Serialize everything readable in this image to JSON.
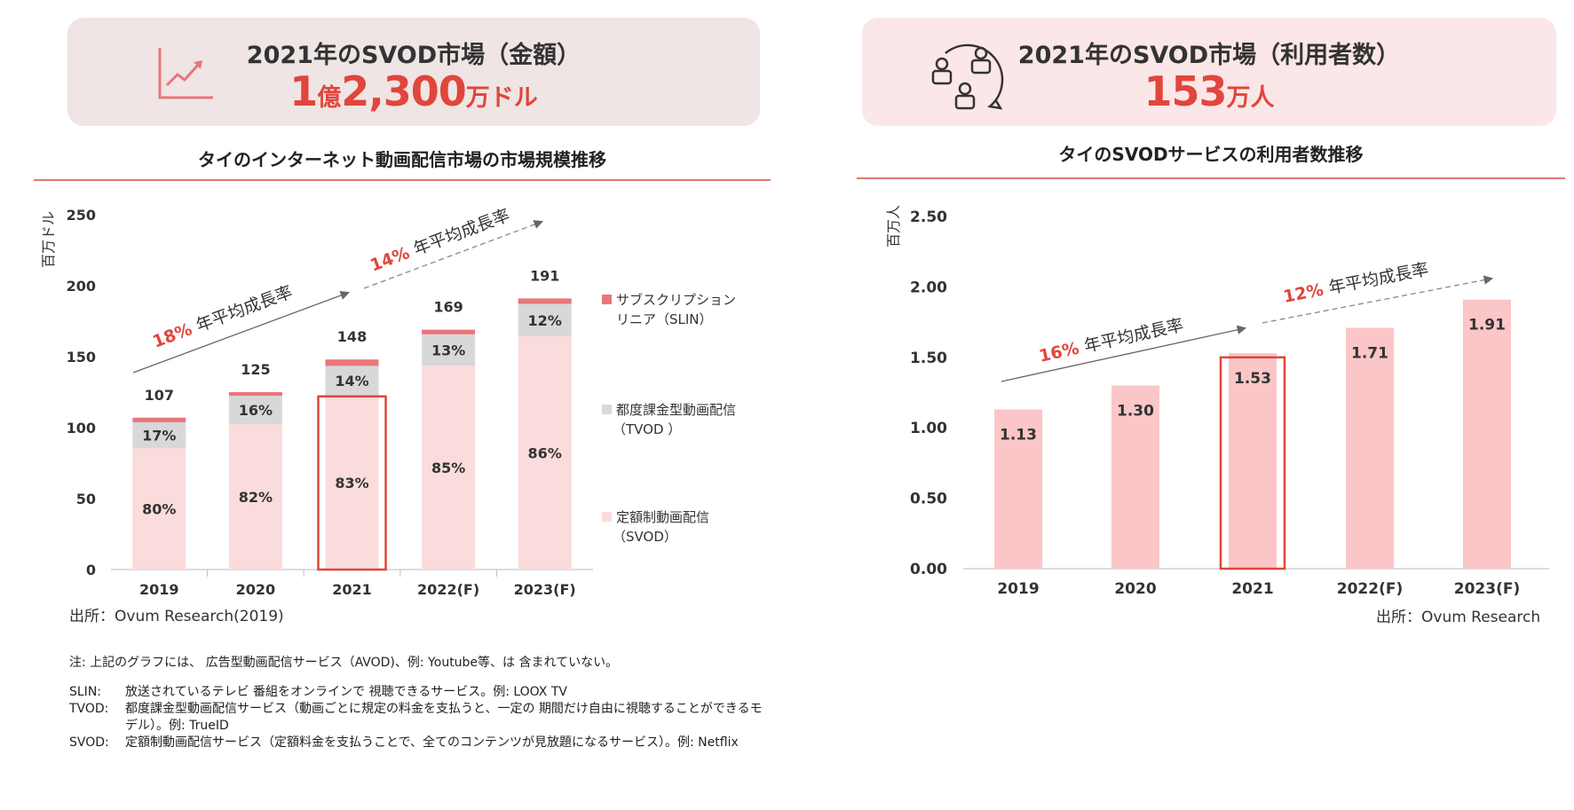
{
  "kpi_left": {
    "title": "2021年のSVOD市場（金額）",
    "value_parts": [
      "1",
      "億",
      "2,300",
      "万ドル"
    ],
    "icon": "growth-chart-icon"
  },
  "kpi_right": {
    "title": "2021年のSVOD市場（利用者数）",
    "value_parts": [
      "153",
      "万人"
    ],
    "icon": "users-network-icon"
  },
  "left_chart_title": "タイのインターネット動画配信市場の市場規模推移",
  "right_chart_title": "タイのSVODサービスの利用者数推移",
  "left_source": "出所：Ovum Research(2019)",
  "right_source": "出所：Ovum Research",
  "notes": {
    "top": "注: 上記のグラフには、 広告型動画配信サービス（AVOD)、例: Youtube等、は 含まれていない。",
    "items": [
      {
        "k": "SLIN:",
        "v": "放送されているテレビ 番組をオンラインで 視聴できるサービス。例: LOOX TV"
      },
      {
        "k": "TVOD:",
        "v": "都度課金型動画配信サービス（動画ごとに規定の料金を支払うと、一定の 期間だけ自由に視聴することができるモデル）。例: TrueID"
      },
      {
        "k": "SVOD:",
        "v": "定額制動画配信サービス（定額料金を支払うことで、全てのコンテンツが見放題になるサービス）。例: Netflix"
      }
    ]
  },
  "colors": {
    "accent": "#e0463c",
    "svod": "#f9dcdb",
    "tvod": "#d8d8d8",
    "slin": "#e8767a",
    "users_bar": "#fbc6c7",
    "highlight": "#e0463c"
  },
  "chart_data": [
    {
      "type": "bar",
      "stacked": true,
      "title": "タイのインターネット動画配信市場の市場規模推移",
      "ylabel": "百万ドル",
      "ylim": [
        0,
        250
      ],
      "yticks": [
        0,
        50,
        100,
        150,
        200,
        250
      ],
      "categories": [
        "2019",
        "2020",
        "2021",
        "2022(F)",
        "2023(F)"
      ],
      "totals": [
        107,
        125,
        148,
        169,
        191
      ],
      "series": [
        {
          "name": "定額制動画配信（SVOD）",
          "share_labels": [
            "80%",
            "82%",
            "83%",
            "85%",
            "86%"
          ],
          "values": [
            85.6,
            102.5,
            122.8,
            143.7,
            164.3
          ]
        },
        {
          "name": "都度課金型動画配信（TVOD ）",
          "share_labels": [
            "17%",
            "16%",
            "14%",
            "13%",
            "12%"
          ],
          "values": [
            18.2,
            20.0,
            20.7,
            22.0,
            22.9
          ]
        },
        {
          "name": "サブスクリプションリニア（SLIN）",
          "share_labels": [
            "",
            "",
            "",
            "",
            ""
          ],
          "values": [
            3.2,
            2.5,
            4.5,
            3.3,
            3.8
          ]
        }
      ],
      "highlight_category": "2021",
      "annotations": [
        {
          "pct": "18%",
          "text": "年平均成長率",
          "from": "2019",
          "to": "2021"
        },
        {
          "pct": "14%",
          "text": "年平均成長率",
          "from": "2021",
          "to": "2023(F)"
        }
      ],
      "legend_position": "right"
    },
    {
      "type": "bar",
      "title": "タイのSVODサービスの利用者数推移",
      "ylabel": "百万人",
      "ylim": [
        0,
        2.5
      ],
      "yticks": [
        "0.00",
        "0.50",
        "1.00",
        "1.50",
        "2.00",
        "2.50"
      ],
      "categories": [
        "2019",
        "2020",
        "2021",
        "2022(F)",
        "2023(F)"
      ],
      "values": [
        1.13,
        1.3,
        1.53,
        1.71,
        1.91
      ],
      "value_labels": [
        "1.13",
        "1.30",
        "1.53",
        "1.71",
        "1.91"
      ],
      "highlight_category": "2021",
      "annotations": [
        {
          "pct": "16%",
          "text": "年平均成長率",
          "from": "2019",
          "to": "2021"
        },
        {
          "pct": "12%",
          "text": "年平均成長率",
          "from": "2021",
          "to": "2023(F)"
        }
      ]
    }
  ]
}
